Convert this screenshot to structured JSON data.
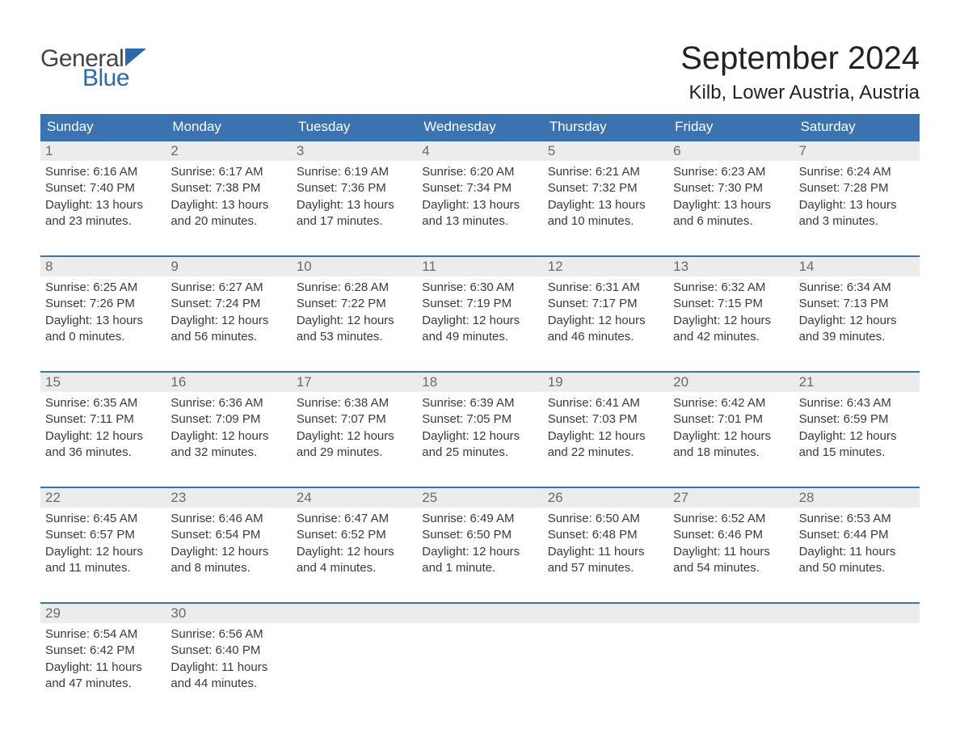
{
  "logo": {
    "text1": "General",
    "text2": "Blue"
  },
  "title": "September 2024",
  "location": "Kilb, Lower Austria, Austria",
  "colors": {
    "header_bg": "#3b73b0",
    "header_text": "#ffffff",
    "daynum_bg": "#ececec",
    "daynum_text": "#6a6a6a",
    "body_text": "#3a3a3a",
    "accent_border": "#3b73b0",
    "logo_blue": "#2d6aa8"
  },
  "dayHeaders": [
    "Sunday",
    "Monday",
    "Tuesday",
    "Wednesday",
    "Thursday",
    "Friday",
    "Saturday"
  ],
  "weeks": [
    [
      {
        "n": "1",
        "sr": "6:16 AM",
        "ss": "7:40 PM",
        "dl": "13 hours and 23 minutes."
      },
      {
        "n": "2",
        "sr": "6:17 AM",
        "ss": "7:38 PM",
        "dl": "13 hours and 20 minutes."
      },
      {
        "n": "3",
        "sr": "6:19 AM",
        "ss": "7:36 PM",
        "dl": "13 hours and 17 minutes."
      },
      {
        "n": "4",
        "sr": "6:20 AM",
        "ss": "7:34 PM",
        "dl": "13 hours and 13 minutes."
      },
      {
        "n": "5",
        "sr": "6:21 AM",
        "ss": "7:32 PM",
        "dl": "13 hours and 10 minutes."
      },
      {
        "n": "6",
        "sr": "6:23 AM",
        "ss": "7:30 PM",
        "dl": "13 hours and 6 minutes."
      },
      {
        "n": "7",
        "sr": "6:24 AM",
        "ss": "7:28 PM",
        "dl": "13 hours and 3 minutes."
      }
    ],
    [
      {
        "n": "8",
        "sr": "6:25 AM",
        "ss": "7:26 PM",
        "dl": "13 hours and 0 minutes."
      },
      {
        "n": "9",
        "sr": "6:27 AM",
        "ss": "7:24 PM",
        "dl": "12 hours and 56 minutes."
      },
      {
        "n": "10",
        "sr": "6:28 AM",
        "ss": "7:22 PM",
        "dl": "12 hours and 53 minutes."
      },
      {
        "n": "11",
        "sr": "6:30 AM",
        "ss": "7:19 PM",
        "dl": "12 hours and 49 minutes."
      },
      {
        "n": "12",
        "sr": "6:31 AM",
        "ss": "7:17 PM",
        "dl": "12 hours and 46 minutes."
      },
      {
        "n": "13",
        "sr": "6:32 AM",
        "ss": "7:15 PM",
        "dl": "12 hours and 42 minutes."
      },
      {
        "n": "14",
        "sr": "6:34 AM",
        "ss": "7:13 PM",
        "dl": "12 hours and 39 minutes."
      }
    ],
    [
      {
        "n": "15",
        "sr": "6:35 AM",
        "ss": "7:11 PM",
        "dl": "12 hours and 36 minutes."
      },
      {
        "n": "16",
        "sr": "6:36 AM",
        "ss": "7:09 PM",
        "dl": "12 hours and 32 minutes."
      },
      {
        "n": "17",
        "sr": "6:38 AM",
        "ss": "7:07 PM",
        "dl": "12 hours and 29 minutes."
      },
      {
        "n": "18",
        "sr": "6:39 AM",
        "ss": "7:05 PM",
        "dl": "12 hours and 25 minutes."
      },
      {
        "n": "19",
        "sr": "6:41 AM",
        "ss": "7:03 PM",
        "dl": "12 hours and 22 minutes."
      },
      {
        "n": "20",
        "sr": "6:42 AM",
        "ss": "7:01 PM",
        "dl": "12 hours and 18 minutes."
      },
      {
        "n": "21",
        "sr": "6:43 AM",
        "ss": "6:59 PM",
        "dl": "12 hours and 15 minutes."
      }
    ],
    [
      {
        "n": "22",
        "sr": "6:45 AM",
        "ss": "6:57 PM",
        "dl": "12 hours and 11 minutes."
      },
      {
        "n": "23",
        "sr": "6:46 AM",
        "ss": "6:54 PM",
        "dl": "12 hours and 8 minutes."
      },
      {
        "n": "24",
        "sr": "6:47 AM",
        "ss": "6:52 PM",
        "dl": "12 hours and 4 minutes."
      },
      {
        "n": "25",
        "sr": "6:49 AM",
        "ss": "6:50 PM",
        "dl": "12 hours and 1 minute."
      },
      {
        "n": "26",
        "sr": "6:50 AM",
        "ss": "6:48 PM",
        "dl": "11 hours and 57 minutes."
      },
      {
        "n": "27",
        "sr": "6:52 AM",
        "ss": "6:46 PM",
        "dl": "11 hours and 54 minutes."
      },
      {
        "n": "28",
        "sr": "6:53 AM",
        "ss": "6:44 PM",
        "dl": "11 hours and 50 minutes."
      }
    ],
    [
      {
        "n": "29",
        "sr": "6:54 AM",
        "ss": "6:42 PM",
        "dl": "11 hours and 47 minutes."
      },
      {
        "n": "30",
        "sr": "6:56 AM",
        "ss": "6:40 PM",
        "dl": "11 hours and 44 minutes."
      },
      null,
      null,
      null,
      null,
      null
    ]
  ],
  "labels": {
    "sunrise": "Sunrise: ",
    "sunset": "Sunset: ",
    "daylight": "Daylight: "
  }
}
